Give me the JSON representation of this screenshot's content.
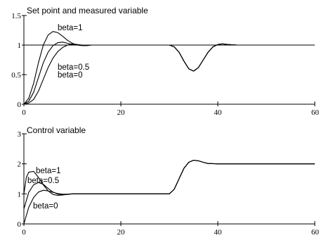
{
  "chart_data": [
    {
      "type": "line",
      "title": "Set point and measured variable",
      "xlim": [
        0,
        60
      ],
      "ylim": [
        0,
        1.5
      ],
      "xticks": [
        "0",
        "20",
        "40",
        "60"
      ],
      "yticks": [
        "0",
        "0.5",
        "1",
        "1.5"
      ],
      "grid": false,
      "annotations": [
        "beta=1",
        "beta=0.5",
        "beta=0"
      ],
      "series": [
        {
          "name": "Set point",
          "x": [
            0,
            60
          ],
          "y": [
            1,
            1
          ]
        },
        {
          "name": "beta=1",
          "x": [
            0,
            1,
            2,
            3,
            4,
            5,
            6,
            7,
            8,
            9,
            10,
            11,
            12,
            13,
            14,
            16,
            18,
            30,
            31,
            32,
            33,
            34,
            35,
            36,
            37,
            38,
            39,
            40,
            41,
            42,
            44,
            60
          ],
          "y": [
            0,
            0.1,
            0.35,
            0.7,
            1.0,
            1.17,
            1.23,
            1.21,
            1.15,
            1.08,
            1.03,
            1.0,
            0.99,
            0.99,
            1.0,
            1.0,
            1.0,
            1.0,
            0.97,
            0.88,
            0.73,
            0.6,
            0.56,
            0.62,
            0.75,
            0.88,
            0.97,
            1.01,
            1.02,
            1.01,
            1.0,
            1.0
          ]
        },
        {
          "name": "beta=0.5",
          "x": [
            0,
            1,
            2,
            3,
            4,
            5,
            6,
            7,
            8,
            9,
            10,
            11,
            12,
            14,
            16,
            30,
            31,
            32,
            33,
            34,
            35,
            36,
            37,
            38,
            39,
            40,
            41,
            42,
            44,
            60
          ],
          "y": [
            0,
            0.05,
            0.2,
            0.45,
            0.7,
            0.88,
            0.99,
            1.04,
            1.05,
            1.03,
            1.01,
            1.0,
            1.0,
            1.0,
            1.0,
            1.0,
            0.97,
            0.88,
            0.73,
            0.6,
            0.56,
            0.62,
            0.75,
            0.88,
            0.97,
            1.01,
            1.02,
            1.01,
            1.0,
            1.0
          ]
        },
        {
          "name": "beta=0",
          "x": [
            0,
            1,
            2,
            3,
            4,
            5,
            6,
            7,
            8,
            9,
            10,
            11,
            12,
            14,
            16,
            30,
            31,
            32,
            33,
            34,
            35,
            36,
            37,
            38,
            39,
            40,
            41,
            42,
            44,
            60
          ],
          "y": [
            0,
            0.02,
            0.08,
            0.22,
            0.42,
            0.62,
            0.78,
            0.89,
            0.96,
            1.0,
            1.02,
            1.01,
            1.0,
            1.0,
            1.0,
            1.0,
            0.97,
            0.88,
            0.73,
            0.6,
            0.56,
            0.62,
            0.75,
            0.88,
            0.97,
            1.01,
            1.02,
            1.01,
            1.0,
            1.0
          ]
        }
      ]
    },
    {
      "type": "line",
      "title": "Control variable",
      "xlim": [
        0,
        60
      ],
      "ylim": [
        0,
        3
      ],
      "xticks": [
        "0",
        "20",
        "40",
        "60"
      ],
      "yticks": [
        "0",
        "1",
        "2",
        "3"
      ],
      "grid": false,
      "annotations": [
        "beta=1",
        "beta=0.5",
        "beta=0"
      ],
      "series": [
        {
          "name": "beta=1",
          "x": [
            0,
            0.5,
            1,
            2,
            3,
            4,
            5,
            6,
            7,
            8,
            9,
            10,
            12,
            15,
            20,
            25,
            30,
            31,
            32,
            33,
            34,
            35,
            36,
            37,
            38,
            40,
            45,
            60
          ],
          "y": [
            1.0,
            1.55,
            1.72,
            1.75,
            1.55,
            1.3,
            1.1,
            0.98,
            0.95,
            0.96,
            0.99,
            1.0,
            1.0,
            1.0,
            1.0,
            1.0,
            1.0,
            1.15,
            1.5,
            1.85,
            2.05,
            2.12,
            2.1,
            2.05,
            2.01,
            2.0,
            2.0,
            2.0
          ]
        },
        {
          "name": "beta=0.5",
          "x": [
            0,
            1,
            2,
            3,
            4,
            5,
            6,
            7,
            8,
            9,
            10,
            12,
            15,
            20,
            25,
            30,
            31,
            32,
            33,
            34,
            35,
            36,
            37,
            38,
            40,
            45,
            60
          ],
          "y": [
            0.5,
            1.05,
            1.3,
            1.38,
            1.32,
            1.18,
            1.06,
            0.99,
            0.97,
            0.98,
            1.0,
            1.0,
            1.0,
            1.0,
            1.0,
            1.0,
            1.15,
            1.5,
            1.85,
            2.05,
            2.12,
            2.1,
            2.05,
            2.01,
            2.0,
            2.0,
            2.0
          ]
        },
        {
          "name": "beta=0",
          "x": [
            0,
            1,
            2,
            3,
            4,
            5,
            6,
            7,
            8,
            9,
            10,
            12,
            15,
            20,
            25,
            30,
            31,
            32,
            33,
            34,
            35,
            36,
            37,
            38,
            40,
            45,
            60
          ],
          "y": [
            0,
            0.55,
            0.88,
            1.06,
            1.12,
            1.1,
            1.05,
            1.01,
            0.99,
            0.99,
            1.0,
            1.0,
            1.0,
            1.0,
            1.0,
            1.0,
            1.15,
            1.5,
            1.85,
            2.05,
            2.12,
            2.1,
            2.05,
            2.01,
            2.0,
            2.0,
            2.0
          ]
        }
      ]
    }
  ]
}
